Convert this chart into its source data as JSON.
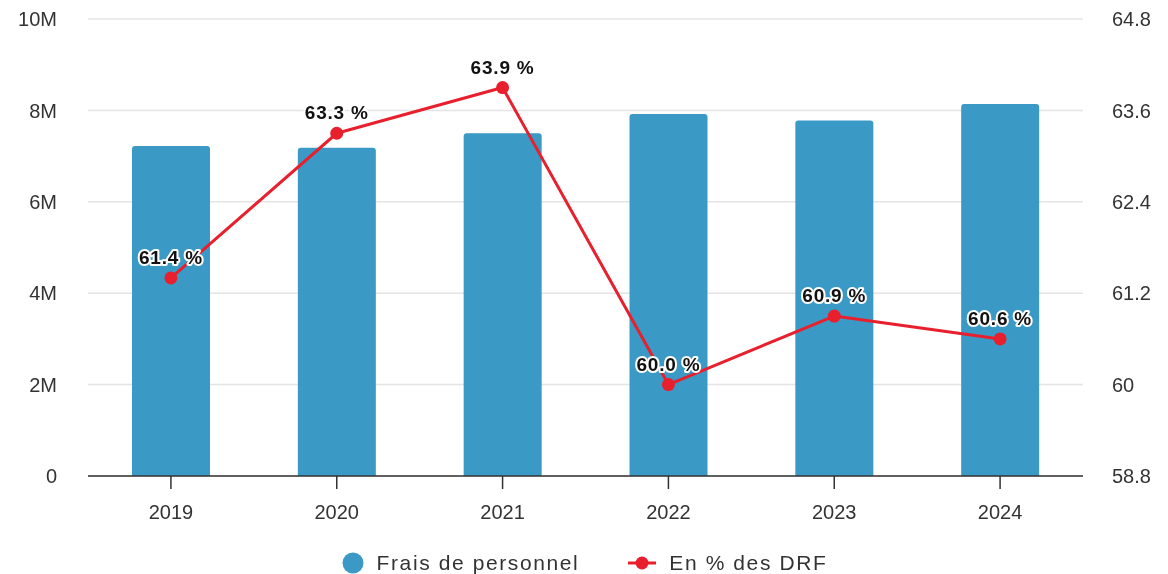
{
  "chart_data": {
    "type": "bar",
    "categories": [
      "2019",
      "2020",
      "2021",
      "2022",
      "2023",
      "2024"
    ],
    "series": [
      {
        "name": "Frais de personnel",
        "color": "#3a99c5",
        "values": [
          7220000,
          7180000,
          7500000,
          7920000,
          7780000,
          8140000
        ]
      },
      {
        "name": "En % des DRF",
        "type": "line",
        "axis": "y2",
        "color": "#e8202e",
        "values": [
          61.4,
          63.3,
          63.9,
          60.0,
          60.9,
          60.6
        ],
        "value_labels": [
          "61.4 %",
          "63.3 %",
          "63.9 %",
          "60.0 %",
          "60.9 %",
          "60.6 %"
        ]
      }
    ],
    "ylim": [
      0,
      10000000
    ],
    "yticks": [
      0,
      {
        "value": 2000000,
        "label": "2M"
      },
      {
        "value": 4000000,
        "label": "4M"
      },
      {
        "value": 6000000,
        "label": "6M"
      },
      {
        "value": 8000000,
        "label": "8M"
      },
      {
        "value": 10000000,
        "label": "10M"
      }
    ],
    "y2lim": [
      58.8,
      64.8
    ],
    "y2ticks": [
      58.8,
      60,
      61.2,
      62.4,
      63.6,
      64.8
    ],
    "grid": "y",
    "legend": "bottom",
    "marker": "circle",
    "line_style": "solid"
  }
}
